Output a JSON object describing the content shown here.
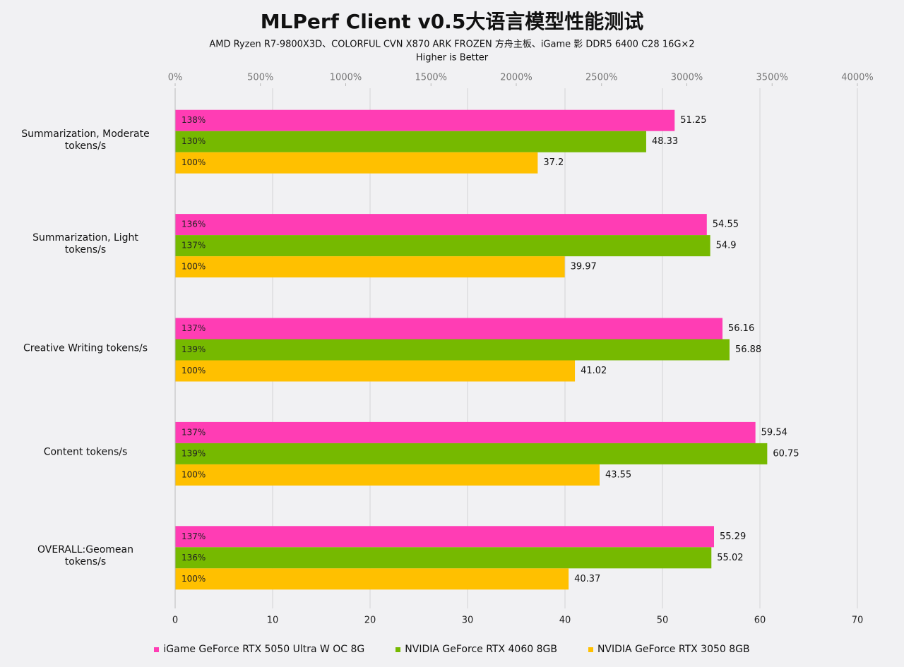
{
  "chart_data": {
    "type": "hbar",
    "title": "MLPerf Client v0.5大语言模型性能测试",
    "subtitle": "AMD Ryzen R7-9800X3D、COLORFUL CVN X870 ARK FROZEN 方舟主板、iGame 影 DDR5 6400 C28 16G×2",
    "note": "Higher is Better",
    "categories": [
      "Summarization, Moderate\ntokens/s",
      "Summarization, Light\ntokens/s",
      "Creative Writing tokens/s",
      "Content tokens/s",
      "OVERALL:Geomean\ntokens/s"
    ],
    "series": [
      {
        "name": "iGame GeForce RTX 5050 Ultra W OC 8G",
        "color": "#ff3db4",
        "values": [
          51.25,
          54.55,
          56.16,
          59.54,
          55.29
        ],
        "relative_labels": [
          "138%",
          "136%",
          "137%",
          "137%",
          "137%"
        ]
      },
      {
        "name": "NVIDIA GeForce RTX 4060 8GB",
        "color": "#76b900",
        "values": [
          48.33,
          54.9,
          56.88,
          60.75,
          55.02
        ],
        "relative_labels": [
          "130%",
          "137%",
          "139%",
          "139%",
          "136%"
        ]
      },
      {
        "name": "NVIDIA GeForce RTX 3050 8GB",
        "color": "#ffc000",
        "values": [
          37.2,
          39.97,
          41.02,
          43.55,
          40.37
        ],
        "relative_labels": [
          "100%",
          "100%",
          "100%",
          "100%",
          "100%"
        ]
      }
    ],
    "xlim": [
      0,
      70
    ],
    "xticks": [
      0,
      10,
      20,
      30,
      40,
      50,
      60,
      70
    ],
    "x2lim": [
      0,
      4000
    ],
    "x2ticks": [
      {
        "value": 0,
        "label": "0%"
      },
      {
        "value": 500,
        "label": "500%"
      },
      {
        "value": 1000,
        "label": "1000%"
      },
      {
        "value": 1500,
        "label": "1500%"
      },
      {
        "value": 2000,
        "label": "2000%"
      },
      {
        "value": 2500,
        "label": "2500%"
      },
      {
        "value": 3000,
        "label": "3000%"
      },
      {
        "value": 3500,
        "label": "3500%"
      },
      {
        "value": 4000,
        "label": "4000%"
      }
    ],
    "grid": true
  }
}
